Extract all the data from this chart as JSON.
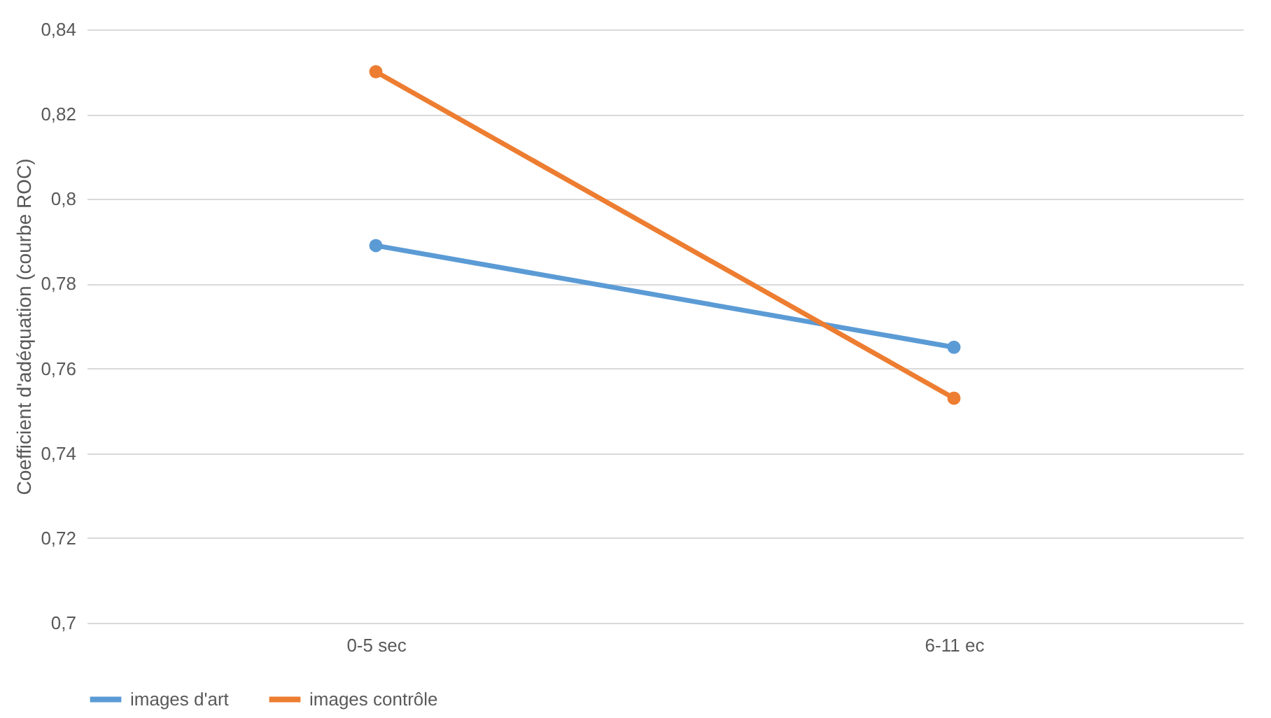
{
  "chart_data": {
    "type": "line",
    "ylabel": "Coefficient d'adéquation (courbe ROC)",
    "categories": [
      "0-5 sec",
      "6-11 ec"
    ],
    "series": [
      {
        "name": "images d'art",
        "color": "#5b9bd5",
        "values": [
          0.789,
          0.765
        ]
      },
      {
        "name": "images contrôle",
        "color": "#ed7d31",
        "values": [
          0.83,
          0.753
        ]
      }
    ],
    "ylim": [
      0.7,
      0.84
    ],
    "yticks": [
      {
        "value": 0.7,
        "label": "0,7"
      },
      {
        "value": 0.72,
        "label": "0,72"
      },
      {
        "value": 0.74,
        "label": "0,74"
      },
      {
        "value": 0.76,
        "label": "0,76"
      },
      {
        "value": 0.78,
        "label": "0,78"
      },
      {
        "value": 0.8,
        "label": "0,8"
      },
      {
        "value": 0.82,
        "label": "0,82"
      },
      {
        "value": 0.84,
        "label": "0,84"
      }
    ],
    "grid": "y",
    "legend": "bottom",
    "marker": "circle",
    "line_style": "solid"
  }
}
